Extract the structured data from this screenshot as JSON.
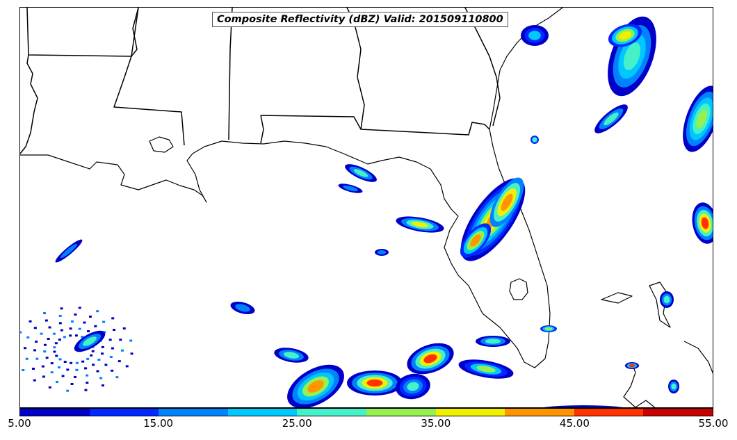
{
  "title": "Composite Reflectivity (dBZ) Valid: 201509110800",
  "colorbar": {
    "colors": [
      "#0000c8",
      "#0028ff",
      "#0082ff",
      "#00c8ff",
      "#46f0c8",
      "#96f050",
      "#f0f000",
      "#ff9600",
      "#ff3200",
      "#c80000"
    ],
    "ticks": [
      "5.00",
      "15.00",
      "25.00",
      "35.00",
      "45.00",
      "55.00"
    ],
    "min": 5,
    "max": 55
  },
  "map": {
    "background": "#ffffff",
    "line_color": "#000000"
  }
}
